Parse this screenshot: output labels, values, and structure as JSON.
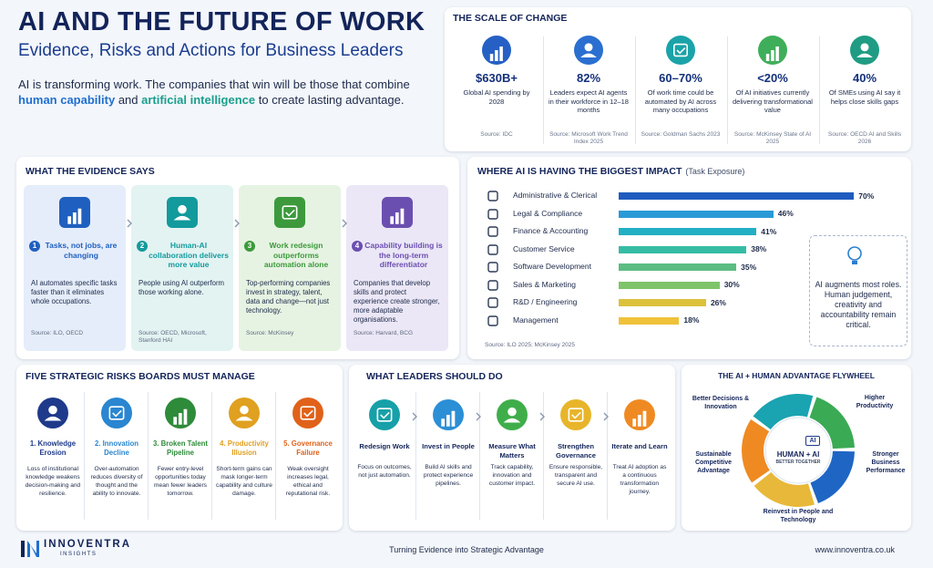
{
  "header": {
    "title": "AI AND THE FUTURE OF WORK",
    "subtitle": "Evidence, Risks and Actions for Business Leaders",
    "intro": [
      "AI is transforming work. The companies that win will be those that combine ",
      "human capability",
      " and ",
      "artificial intelligence",
      " to create lasting advantage."
    ]
  },
  "scale": {
    "title": "THE SCALE OF CHANGE",
    "items": [
      {
        "value": "$630B+",
        "text": "Global AI spending by 2028",
        "source": "Source: IDC"
      },
      {
        "value": "82%",
        "text": "Leaders expect AI agents in their workforce in 12–18 months",
        "source": "Source: Microsoft Work Trend Index 2025"
      },
      {
        "value": "60–70%",
        "text": "Of work time could be automated by AI across many occupations",
        "source": "Source: Goldman Sachs 2023"
      },
      {
        "value": "<20%",
        "text": "Of AI initiatives currently delivering transformational value",
        "source": "Source: McKinsey State of AI 2025"
      },
      {
        "value": "40%",
        "text": "Of SMEs using AI say it helps close skills gaps",
        "source": "Source: OECD AI and Skills 2026"
      }
    ]
  },
  "evidence": {
    "title": "WHAT THE EVIDENCE SAYS",
    "cards": [
      {
        "num": "1",
        "heading": "Tasks, not jobs, are changing",
        "text": "AI automates specific tasks faster than it eliminates whole occupations.",
        "source": "Source: ILO, OECD"
      },
      {
        "num": "2",
        "heading": "Human-AI collaboration delivers more value",
        "text": "People using AI outperform those working alone.",
        "source": "Source: OECD, Microsoft, Stanford HAI"
      },
      {
        "num": "3",
        "heading": "Work redesign outperforms automation alone",
        "text": "Top-performing companies invest in strategy, talent, data and change—not just technology.",
        "source": "Source: McKinsey"
      },
      {
        "num": "4",
        "heading": "Capability building is the long-term differentiator",
        "text": "Companies that develop skills and protect experience create stronger, more adaptable organisations.",
        "source": "Source: Harvard, BCG"
      }
    ]
  },
  "impact": {
    "title": "WHERE AI IS HAVING THE BIGGEST IMPACT",
    "subtitle": "(Task Exposure)",
    "categories": [
      "Administrative & Clerical",
      "Legal & Compliance",
      "Finance & Accounting",
      "Customer Service",
      "Software Development",
      "Sales & Marketing",
      "R&D / Engineering",
      "Management"
    ],
    "values": [
      70,
      46,
      41,
      38,
      35,
      30,
      26,
      18
    ],
    "value_labels": [
      "70%",
      "46%",
      "41%",
      "38%",
      "35%",
      "30%",
      "26%",
      "18%"
    ],
    "colors": [
      "#1f5bbf",
      "#2a9ad6",
      "#22afc4",
      "#36bca4",
      "#5bbd82",
      "#7ec46a",
      "#dcc13c",
      "#efc23a"
    ],
    "source": "Source: ILO 2025; McKinsey 2025",
    "callout": "AI augments most roles. Human judgement, creativity and accountability remain critical."
  },
  "risks": {
    "title": "FIVE STRATEGIC RISKS BOARDS MUST MANAGE",
    "items": [
      {
        "heading": "1. Knowledge Erosion",
        "text": "Loss of institutional knowledge weakens decision-making and resilience."
      },
      {
        "heading": "2. Innovation Decline",
        "text": "Over-automation reduces diversity of thought and the ability to innovate."
      },
      {
        "heading": "3. Broken Talent Pipeline",
        "text": "Fewer entry-level opportunities today mean fewer leaders tomorrow."
      },
      {
        "heading": "4. Productivity Illusion",
        "text": "Short-term gains can mask longer-term capability and culture damage."
      },
      {
        "heading": "5. Governance Failure",
        "text": "Weak oversight increases legal, ethical and reputational risk."
      }
    ]
  },
  "actions": {
    "title": "WHAT LEADERS SHOULD DO",
    "items": [
      {
        "heading": "Redesign Work",
        "text": "Focus on outcomes, not just automation."
      },
      {
        "heading": "Invest in People",
        "text": "Build AI skills and protect experience pipelines."
      },
      {
        "heading": "Measure What Matters",
        "text": "Track capability, innovation and customer impact."
      },
      {
        "heading": "Strengthen Governance",
        "text": "Ensure responsible, transparent and secure AI use."
      },
      {
        "heading": "Iterate and Learn",
        "text": "Treat AI adoption as a continuous transformation journey."
      }
    ]
  },
  "flywheel": {
    "title": "THE AI + HUMAN ADVANTAGE FLYWHEEL",
    "center_icon": "AI",
    "center": "HUMAN + AI",
    "center_sub": "BETTER TOGETHER",
    "labels": [
      "Better Decisions & Innovation",
      "Higher Productivity",
      "Stronger Business Performance",
      "Reinvest in People and Technology",
      "Sustainable Competitive Advantage"
    ]
  },
  "footer": {
    "brand": "INNOVENTRA",
    "brand_sub": "INSIGHTS",
    "tagline": "Turning Evidence into Strategic Advantage",
    "url": "www.innoventra.co.uk"
  }
}
